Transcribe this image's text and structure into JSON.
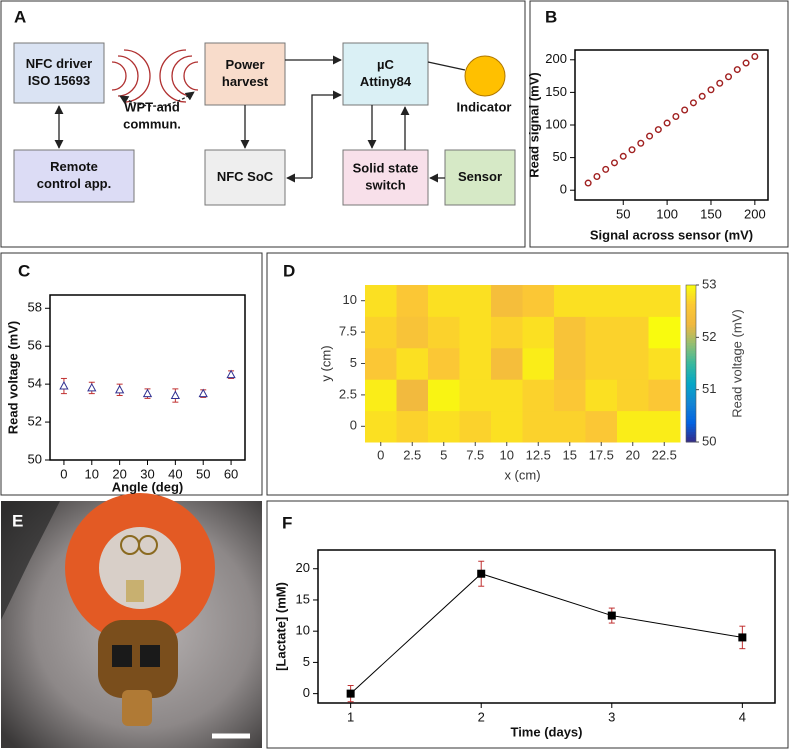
{
  "diagram": {
    "label": "A",
    "nodes": [
      {
        "lines": [
          "NFC driver",
          "ISO 15693"
        ],
        "color": "#dae3f3"
      },
      {
        "lines": [
          "Remote",
          "control app."
        ],
        "color": "#dcdcf5"
      },
      {
        "lines": [
          "Power",
          "harvest"
        ],
        "color": "#f8dccb"
      },
      {
        "lines": [
          "NFC SoC"
        ],
        "color": "#eeeeee"
      },
      {
        "lines": [
          "µC",
          "Attiny84"
        ],
        "color": "#daf0f5"
      },
      {
        "lines": [
          "Solid state",
          "switch"
        ],
        "color": "#f8e0ea"
      },
      {
        "lines": [
          "Sensor"
        ],
        "color": "#d6e9c6"
      },
      {
        "lines": [
          "Indicator"
        ],
        "color": "#ffc000"
      }
    ],
    "edge_label": {
      "lines": [
        "WPT and",
        "commun."
      ]
    }
  },
  "photo": {
    "label": "E"
  },
  "chart_data": [
    {
      "type": "scatter",
      "label": "B",
      "marker": "circle",
      "color": "#a02020",
      "xlabel": "Signal across sensor (mV)",
      "ylabel": "Read signal (mV)",
      "x": [
        10,
        20,
        30,
        40,
        50,
        60,
        70,
        80,
        90,
        100,
        110,
        120,
        130,
        140,
        150,
        160,
        170,
        180,
        190,
        200
      ],
      "values": [
        11,
        21,
        32,
        42,
        52,
        62,
        72,
        83,
        93,
        103,
        113,
        123,
        134,
        144,
        154,
        164,
        174,
        185,
        195,
        205
      ],
      "xlim": [
        -5,
        215
      ],
      "ylim": [
        -15,
        215
      ],
      "xticks": [
        50,
        100,
        150,
        200
      ],
      "yticks": [
        0,
        50,
        100,
        150,
        200
      ]
    },
    {
      "type": "scatter",
      "label": "C",
      "marker": "triangle",
      "color": "#303090",
      "error_color": "#c03030",
      "xlabel": "Angle (deg)",
      "ylabel": "Read voltage (mV)",
      "x": [
        0,
        10,
        20,
        30,
        40,
        50,
        60
      ],
      "values": [
        53.9,
        53.8,
        53.7,
        53.5,
        53.4,
        53.5,
        54.5
      ],
      "errors": [
        0.4,
        0.3,
        0.3,
        0.25,
        0.35,
        0.2,
        0.2
      ],
      "xlim": [
        -5,
        65
      ],
      "ylim": [
        50,
        58.7
      ],
      "xticks": [
        0,
        10,
        20,
        30,
        40,
        50,
        60
      ],
      "yticks": [
        50,
        52,
        54,
        56,
        58
      ]
    },
    {
      "type": "heatmap",
      "label": "D",
      "xlabel": "x (cm)",
      "ylabel": "y (cm)",
      "zlabel": "Read voltage (mV)",
      "x": [
        0,
        2.5,
        5,
        7.5,
        10,
        12.5,
        15,
        17.5,
        20,
        22.5
      ],
      "y": [
        0,
        2.5,
        5,
        7.5,
        10
      ],
      "z": [
        [
          52.8,
          52.7,
          52.8,
          52.7,
          52.8,
          52.7,
          52.7,
          52.6,
          52.9,
          52.9
        ],
        [
          52.9,
          52.3,
          52.95,
          52.8,
          52.8,
          52.7,
          52.6,
          52.8,
          52.7,
          52.6
        ],
        [
          52.6,
          52.8,
          52.6,
          52.8,
          52.4,
          52.9,
          52.5,
          52.7,
          52.7,
          52.8
        ],
        [
          52.7,
          52.5,
          52.7,
          52.8,
          52.7,
          52.8,
          52.5,
          52.7,
          52.7,
          53.0
        ],
        [
          52.8,
          52.6,
          52.8,
          52.8,
          52.4,
          52.6,
          52.8,
          52.8,
          52.8,
          52.8
        ]
      ],
      "zlim": [
        50,
        53
      ],
      "zticks": [
        50,
        51,
        52,
        53
      ],
      "colormap": [
        "#352a87",
        "#0363e1",
        "#1485d4",
        "#06a7c6",
        "#38b99e",
        "#92bf73",
        "#f0b840",
        "#fcc834",
        "#f9fb0e"
      ]
    },
    {
      "type": "line",
      "label": "F",
      "marker": "square",
      "color": "#000000",
      "error_color": "#c03030",
      "xlabel": "Time (days)",
      "ylabel": "[Lactate] (mM)",
      "x": [
        1,
        2,
        3,
        4
      ],
      "values": [
        0,
        19.2,
        12.5,
        9
      ],
      "errors": [
        1.3,
        2,
        1.2,
        1.8
      ],
      "xlim": [
        0.75,
        4.25
      ],
      "ylim": [
        -1.5,
        23
      ],
      "xticks": [
        1,
        2,
        3,
        4
      ],
      "yticks": [
        0,
        5,
        10,
        15,
        20
      ]
    }
  ]
}
